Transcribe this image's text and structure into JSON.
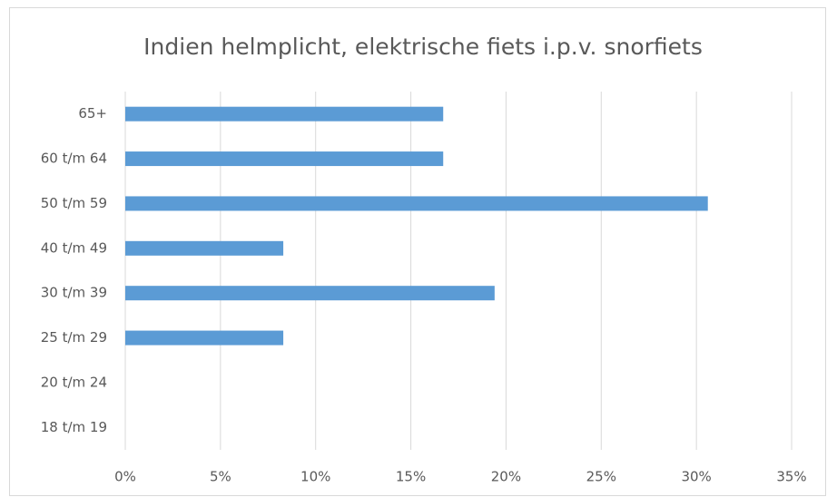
{
  "chart_data": {
    "type": "bar",
    "orientation": "horizontal",
    "title": "Indien helmplicht, elektrische fiets i.p.v. snorfiets",
    "categories": [
      "65+",
      "60 t/m 64",
      "50 t/m 59",
      "40 t/m 49",
      "30 t/m 39",
      "25 t/m 29",
      "20 t/m 24",
      "18 t/m 19"
    ],
    "values": [
      16.7,
      16.7,
      30.6,
      8.3,
      19.4,
      8.3,
      0,
      0
    ],
    "color": "#5b9bd5",
    "xlim": [
      0,
      35
    ],
    "xticks": [
      {
        "value": 0,
        "label": "0%"
      },
      {
        "value": 5,
        "label": "5%"
      },
      {
        "value": 10,
        "label": "10%"
      },
      {
        "value": 15,
        "label": "15%"
      },
      {
        "value": 20,
        "label": "20%"
      },
      {
        "value": 25,
        "label": "25%"
      },
      {
        "value": 30,
        "label": "30%"
      },
      {
        "value": 35,
        "label": "35%"
      }
    ],
    "grid": true
  }
}
